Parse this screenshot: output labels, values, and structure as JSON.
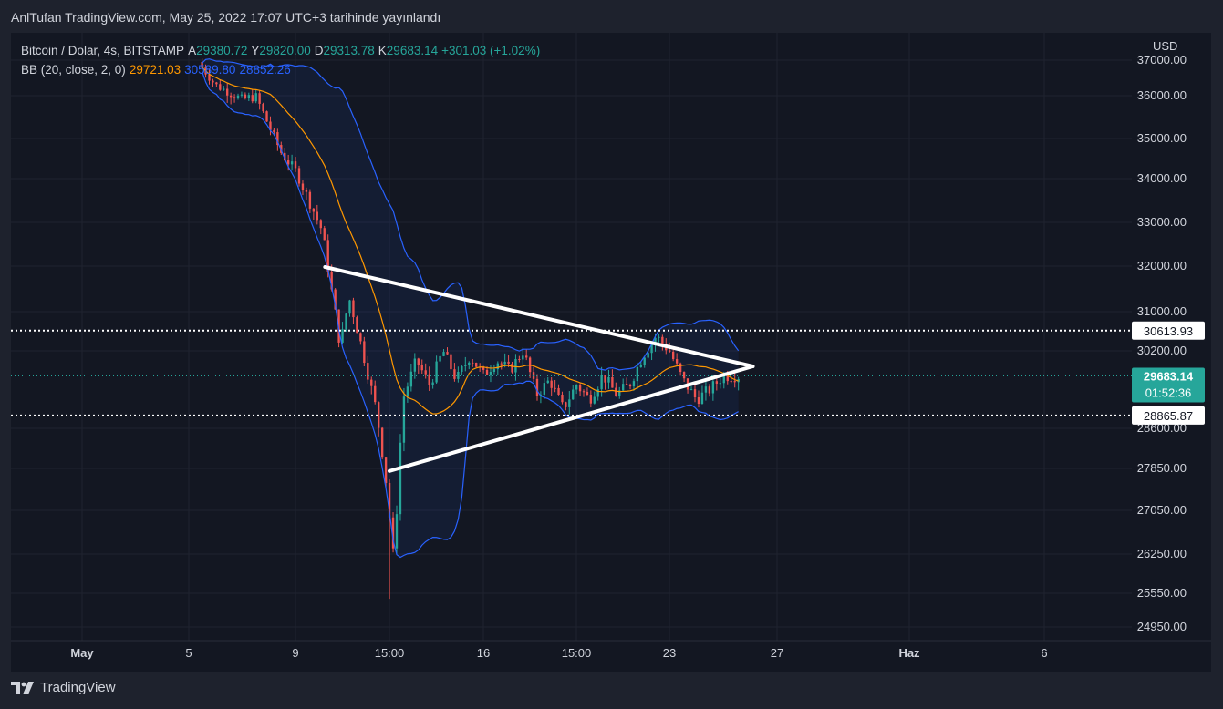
{
  "header": {
    "caption": "AnlTufan TradingView.com, May 25, 2022 17:07 UTC+3 tarihinde yayınlandı"
  },
  "legend": {
    "symbol": "Bitcoin / Dolar, 4s, BITSTAMP",
    "o_label": "A",
    "o_value": "29380.72",
    "h_label": "Y",
    "h_value": "29820.00",
    "l_label": "D",
    "l_value": "29313.78",
    "c_label": "K",
    "c_value": "29683.14",
    "change": "+301.03 (+1.02%)",
    "bb_label": "BB (20, close, 2, 0)",
    "bb_basis": "29721.03",
    "bb_upper": "30589.80",
    "bb_lower": "28852.26"
  },
  "axis": {
    "currency": "USD"
  },
  "brand": {
    "name": "TradingView"
  },
  "colors": {
    "up": "#26a69a",
    "down": "#ef5350",
    "basis": "#ff9800",
    "bands": "#2962ff",
    "triangle": "#ffffff"
  },
  "chart_data": {
    "type": "candlestick",
    "symbol": "Bitcoin / Dolar",
    "interval": "4s",
    "exchange": "BITSTAMP",
    "y_ticks": [
      37000,
      36000,
      35000,
      34000,
      33000,
      32000,
      31000,
      30200,
      28600,
      27850,
      27050,
      26250,
      25550,
      24950
    ],
    "x_ticks": [
      "May",
      "5",
      "9",
      "15:00",
      "16",
      "15:00",
      "23",
      "27",
      "Haz",
      "6"
    ],
    "price_labels": [
      {
        "value": 30613.93,
        "label": "30613.93",
        "style": "white",
        "line": "dotted-white"
      },
      {
        "value": 29683.14,
        "label": "29683.14",
        "countdown": "01:52:36",
        "style": "teal",
        "line": "dotted-teal"
      },
      {
        "value": 28865.87,
        "label": "28865.87",
        "style": "white",
        "line": "dotted-white"
      }
    ],
    "price_path": [
      [
        "May 5",
        37500
      ],
      [
        "May 5",
        36800
      ],
      [
        "May 6",
        36300
      ],
      [
        "May 7",
        35900
      ],
      [
        "May 7",
        36000
      ],
      [
        "May 8",
        35300
      ],
      [
        "May 8",
        34600
      ],
      [
        "May 9",
        34200
      ],
      [
        "May 9",
        33500
      ],
      [
        "May 10",
        32800
      ],
      [
        "May 10",
        31500
      ],
      [
        "May 10",
        30300
      ],
      [
        "May 11",
        31300
      ],
      [
        "May 11",
        30200
      ],
      [
        "May 12",
        29000
      ],
      [
        "May 12",
        27800
      ],
      [
        "May 12",
        26100
      ],
      [
        "May 13",
        29200
      ],
      [
        "May 13",
        30000
      ],
      [
        "May 14",
        29500
      ],
      [
        "May 14",
        30200
      ],
      [
        "May 15",
        29600
      ],
      [
        "May 15",
        30100
      ],
      [
        "May 16",
        29700
      ],
      [
        "May 16",
        30000
      ],
      [
        "May 17",
        29800
      ],
      [
        "May 17",
        30200
      ],
      [
        "May 18",
        29300
      ],
      [
        "May 18",
        29600
      ],
      [
        "May 19",
        29000
      ],
      [
        "May 19",
        29500
      ],
      [
        "May 20",
        29200
      ],
      [
        "May 20",
        29700
      ],
      [
        "May 21",
        29300
      ],
      [
        "May 21",
        29500
      ],
      [
        "May 22",
        30100
      ],
      [
        "May 22",
        30500
      ],
      [
        "May 23",
        30200
      ],
      [
        "May 23",
        29600
      ],
      [
        "May 24",
        29200
      ],
      [
        "May 24",
        29400
      ],
      [
        "May 25",
        29683.14
      ]
    ],
    "bollinger": {
      "period": 20,
      "source": "close",
      "mult": 2,
      "offset": 0,
      "basis": 29721.03,
      "upper": 30589.8,
      "lower": 28852.26
    },
    "triangle": {
      "upper_start": [
        "May 10",
        31980
      ],
      "apex": [
        "May 26",
        29880
      ],
      "lower_start": [
        "May 12",
        27800
      ]
    }
  }
}
